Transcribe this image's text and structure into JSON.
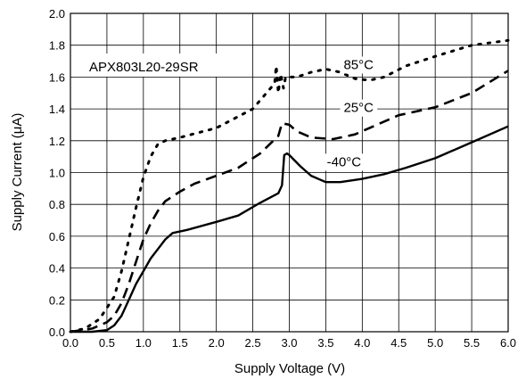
{
  "chart_data": {
    "type": "line",
    "title": "APX803L20-29SR",
    "xlabel": "Supply Voltage (V)",
    "ylabel": "Supply Current (μA)",
    "xlim": [
      0.0,
      6.0
    ],
    "ylim": [
      0.0,
      2.0
    ],
    "x_ticks": [
      "0.0",
      "0.5",
      "1.0",
      "1.5",
      "2.0",
      "2.5",
      "3.0",
      "3.5",
      "4.0",
      "4.5",
      "5.0",
      "5.5",
      "6.0"
    ],
    "y_ticks": [
      "0.0",
      "0.2",
      "0.4",
      "0.6",
      "0.8",
      "1.0",
      "1.2",
      "1.4",
      "1.6",
      "1.8",
      "2.0"
    ],
    "grid": true,
    "series": [
      {
        "name": "85°C",
        "style": "dotted",
        "color": "#000000",
        "points": [
          [
            0.0,
            0.0
          ],
          [
            0.2,
            0.02
          ],
          [
            0.4,
            0.08
          ],
          [
            0.5,
            0.15
          ],
          [
            0.6,
            0.22
          ],
          [
            0.7,
            0.38
          ],
          [
            0.8,
            0.58
          ],
          [
            0.9,
            0.78
          ],
          [
            1.0,
            0.97
          ],
          [
            1.1,
            1.1
          ],
          [
            1.2,
            1.18
          ],
          [
            1.3,
            1.2
          ],
          [
            1.5,
            1.22
          ],
          [
            2.0,
            1.28
          ],
          [
            2.5,
            1.4
          ],
          [
            2.8,
            1.56
          ],
          [
            2.82,
            1.67
          ],
          [
            2.85,
            1.5
          ],
          [
            2.88,
            1.62
          ],
          [
            2.92,
            1.53
          ],
          [
            2.95,
            1.6
          ],
          [
            3.1,
            1.6
          ],
          [
            3.3,
            1.63
          ],
          [
            3.5,
            1.65
          ],
          [
            3.7,
            1.63
          ],
          [
            3.9,
            1.59
          ],
          [
            4.1,
            1.58
          ],
          [
            4.3,
            1.6
          ],
          [
            4.6,
            1.67
          ],
          [
            5.0,
            1.73
          ],
          [
            5.5,
            1.8
          ],
          [
            6.0,
            1.83
          ]
        ]
      },
      {
        "name": "25°C",
        "style": "dashed",
        "color": "#000000",
        "points": [
          [
            0.0,
            0.0
          ],
          [
            0.3,
            0.02
          ],
          [
            0.5,
            0.06
          ],
          [
            0.6,
            0.1
          ],
          [
            0.7,
            0.18
          ],
          [
            0.8,
            0.3
          ],
          [
            0.9,
            0.44
          ],
          [
            1.0,
            0.58
          ],
          [
            1.1,
            0.68
          ],
          [
            1.2,
            0.76
          ],
          [
            1.3,
            0.82
          ],
          [
            1.5,
            0.88
          ],
          [
            1.7,
            0.93
          ],
          [
            2.0,
            0.98
          ],
          [
            2.3,
            1.03
          ],
          [
            2.6,
            1.12
          ],
          [
            2.85,
            1.23
          ],
          [
            2.9,
            1.31
          ],
          [
            3.0,
            1.3
          ],
          [
            3.1,
            1.26
          ],
          [
            3.3,
            1.22
          ],
          [
            3.6,
            1.21
          ],
          [
            3.9,
            1.24
          ],
          [
            4.2,
            1.3
          ],
          [
            4.5,
            1.36
          ],
          [
            5.0,
            1.41
          ],
          [
            5.5,
            1.5
          ],
          [
            6.0,
            1.64
          ]
        ]
      },
      {
        "name": "-40°C",
        "style": "solid",
        "color": "#000000",
        "points": [
          [
            0.0,
            0.0
          ],
          [
            0.3,
            0.0
          ],
          [
            0.5,
            0.01
          ],
          [
            0.6,
            0.04
          ],
          [
            0.7,
            0.1
          ],
          [
            0.8,
            0.2
          ],
          [
            0.9,
            0.3
          ],
          [
            1.0,
            0.38
          ],
          [
            1.1,
            0.46
          ],
          [
            1.2,
            0.52
          ],
          [
            1.3,
            0.58
          ],
          [
            1.4,
            0.62
          ],
          [
            1.6,
            0.64
          ],
          [
            2.0,
            0.69
          ],
          [
            2.3,
            0.73
          ],
          [
            2.6,
            0.81
          ],
          [
            2.85,
            0.87
          ],
          [
            2.9,
            0.92
          ],
          [
            2.93,
            1.11
          ],
          [
            2.97,
            1.12
          ],
          [
            3.0,
            1.11
          ],
          [
            3.15,
            1.04
          ],
          [
            3.3,
            0.98
          ],
          [
            3.5,
            0.94
          ],
          [
            3.7,
            0.94
          ],
          [
            4.0,
            0.96
          ],
          [
            4.3,
            0.99
          ],
          [
            4.6,
            1.03
          ],
          [
            5.0,
            1.09
          ],
          [
            5.5,
            1.19
          ],
          [
            6.0,
            1.29
          ]
        ]
      }
    ],
    "series_labels": [
      {
        "series": "85°C",
        "x": 3.95,
        "y": 1.65
      },
      {
        "series": "25°C",
        "x": 3.95,
        "y": 1.38
      },
      {
        "series": "-40°C",
        "x": 3.75,
        "y": 1.04
      }
    ]
  }
}
